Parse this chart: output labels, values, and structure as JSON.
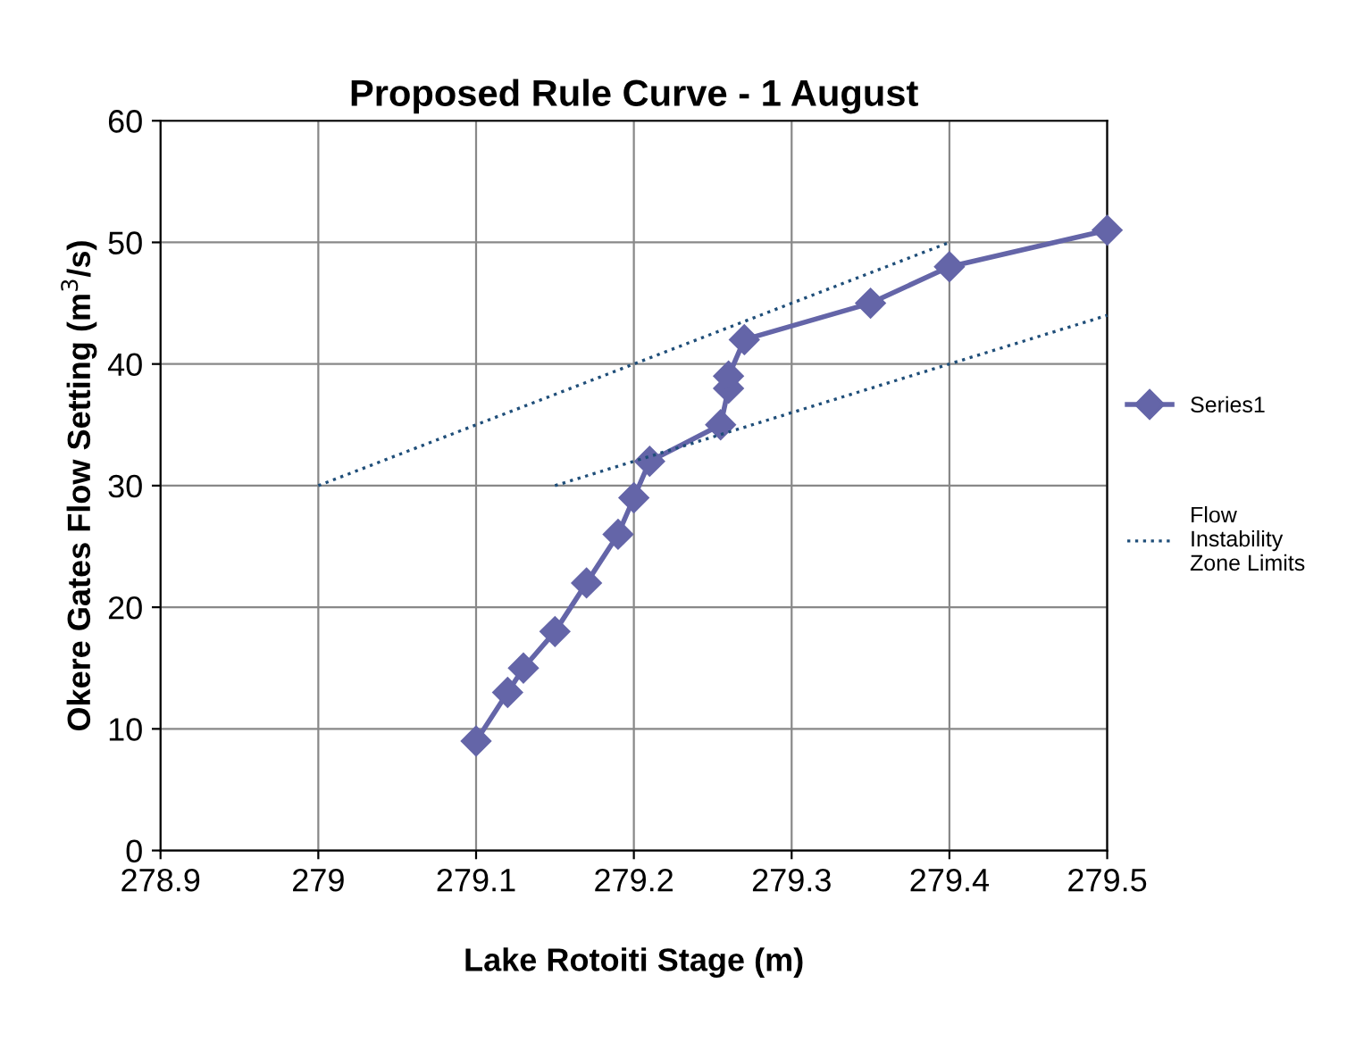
{
  "chart_data": {
    "type": "line",
    "title": "Proposed Rule Curve - 1 August",
    "xlabel": "Lake Rotoiti Stage (m)",
    "ylabel": "Okere Gates Flow Setting (m$^{3}$/s)",
    "xlim": [
      278.9,
      279.5
    ],
    "xticks": [
      278.9,
      279,
      279.1,
      279.2,
      279.3,
      279.4,
      279.5
    ],
    "ylim": [
      0,
      60
    ],
    "yticks": [
      0,
      10,
      20,
      30,
      40,
      50,
      60
    ],
    "grid": true,
    "legend": "right",
    "series": [
      {
        "name": "Series1",
        "color": "#6465a8",
        "marker": "diamond",
        "line_style": "solid",
        "x": [
          279.1,
          279.12,
          279.13,
          279.15,
          279.17,
          279.19,
          279.2,
          279.21,
          279.255,
          279.26,
          279.26,
          279.27,
          279.35,
          279.4,
          279.5
        ],
        "values": [
          9,
          13,
          15,
          18,
          22,
          26,
          29,
          32,
          35,
          38,
          39,
          42,
          45,
          48,
          51
        ]
      },
      {
        "name": "Flow Instability Zone Limits",
        "color": "#1f4e79",
        "marker": "none",
        "line_style": "dotted",
        "x": [
          279,
          279.4,
          null,
          279.15,
          279.5
        ],
        "values": [
          30,
          50,
          null,
          30,
          44
        ]
      }
    ]
  }
}
